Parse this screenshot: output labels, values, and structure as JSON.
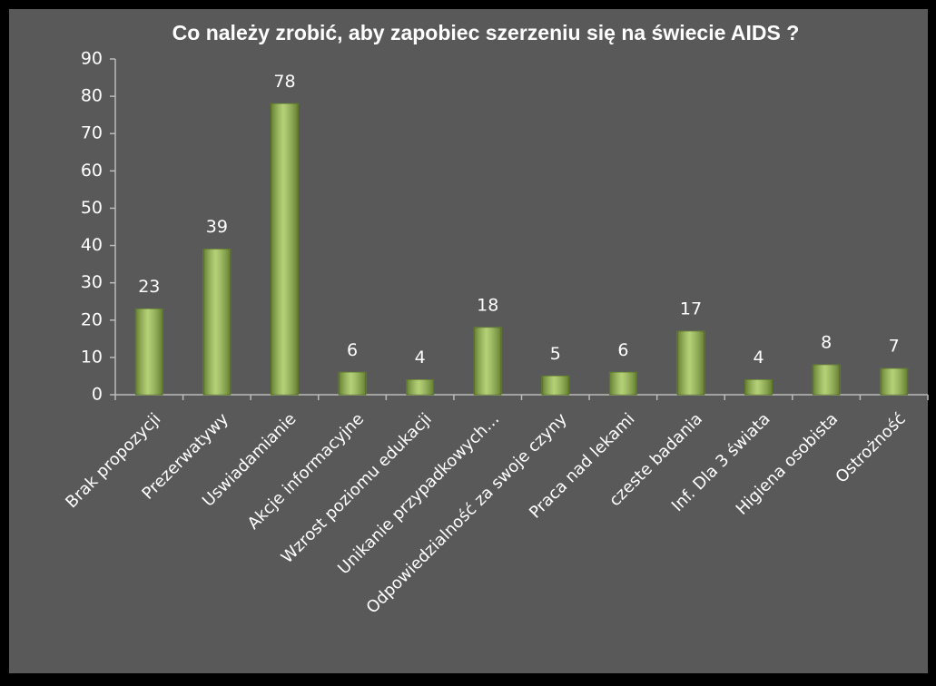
{
  "chart_data": {
    "type": "bar",
    "title": "Co należy zrobić, aby zapobiec szerzeniu się na świecie AIDS ?",
    "categories": [
      "Brak propozycji",
      "Prezerwatywy",
      "Uswiadamianie",
      "Akcje informacyjne",
      "Wzrost poziomu edukacji",
      "Unikanie przypadkowych…",
      "Odpowiedzialność za swoje czyny",
      "Praca nad lekami",
      "czeste badania",
      "Inf. Dla 3 świata",
      "Higiena osobista",
      "Ostrożność"
    ],
    "values": [
      23,
      39,
      78,
      6,
      4,
      18,
      5,
      6,
      17,
      4,
      8,
      7
    ],
    "color": "#9bc24a",
    "ylim": [
      0,
      90
    ],
    "yticks": [
      0,
      10,
      20,
      30,
      40,
      50,
      60,
      70,
      80,
      90
    ]
  }
}
